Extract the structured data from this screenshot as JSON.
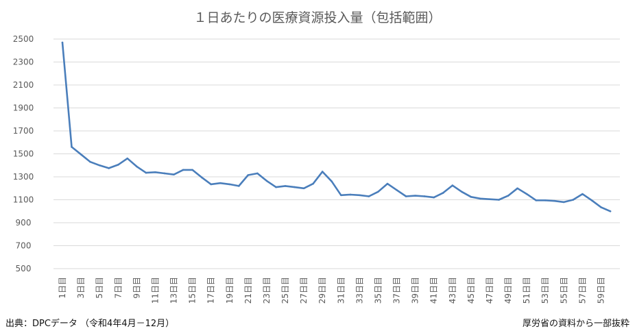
{
  "chart_data": {
    "type": "line",
    "title": "１日あたりの医療資源投入量（包括範囲）",
    "ylim": [
      500,
      2500
    ],
    "yticks": [
      500,
      700,
      900,
      1100,
      1300,
      1500,
      1700,
      1900,
      2100,
      2300,
      2500
    ],
    "grid": true,
    "legend": "none",
    "x_tick_labels": [
      "1日目",
      "3日目",
      "5日目",
      "7日目",
      "9日目",
      "11日目",
      "13日目",
      "15日目",
      "17日目",
      "19日目",
      "21日目",
      "23日目",
      "25日目",
      "27日目",
      "29日目",
      "31日目",
      "33日目",
      "35日目",
      "37日目",
      "39日目",
      "41日目",
      "43日目",
      "45日目",
      "47日目",
      "49日目",
      "51日目",
      "53日目",
      "55日目",
      "57日目",
      "59日目"
    ],
    "series": [
      {
        "color": "#4a7ebb",
        "x": [
          1,
          2,
          3,
          4,
          5,
          6,
          7,
          8,
          9,
          10,
          11,
          12,
          13,
          14,
          15,
          16,
          17,
          18,
          19,
          20,
          21,
          22,
          23,
          24,
          25,
          26,
          27,
          28,
          29,
          30,
          31,
          32,
          33,
          34,
          35,
          36,
          37,
          38,
          39,
          40,
          41,
          42,
          43,
          44,
          45,
          46,
          47,
          48,
          49,
          50,
          51,
          52,
          53,
          54,
          55,
          56,
          57,
          58,
          59,
          60
        ],
        "values": [
          2470,
          1560,
          1495,
          1430,
          1400,
          1375,
          1405,
          1460,
          1390,
          1335,
          1340,
          1330,
          1320,
          1360,
          1360,
          1295,
          1235,
          1245,
          1235,
          1220,
          1315,
          1330,
          1265,
          1210,
          1220,
          1210,
          1200,
          1240,
          1345,
          1260,
          1140,
          1145,
          1140,
          1130,
          1170,
          1240,
          1185,
          1130,
          1135,
          1130,
          1120,
          1160,
          1225,
          1170,
          1125,
          1110,
          1105,
          1100,
          1135,
          1200,
          1150,
          1095,
          1095,
          1090,
          1080,
          1100,
          1150,
          1095,
          1035,
          1000
        ]
      }
    ]
  },
  "footer": {
    "source": "出典：DPCデータ （令和4年4月－12月）",
    "credit": "厚労省の資料から一部抜粋"
  }
}
